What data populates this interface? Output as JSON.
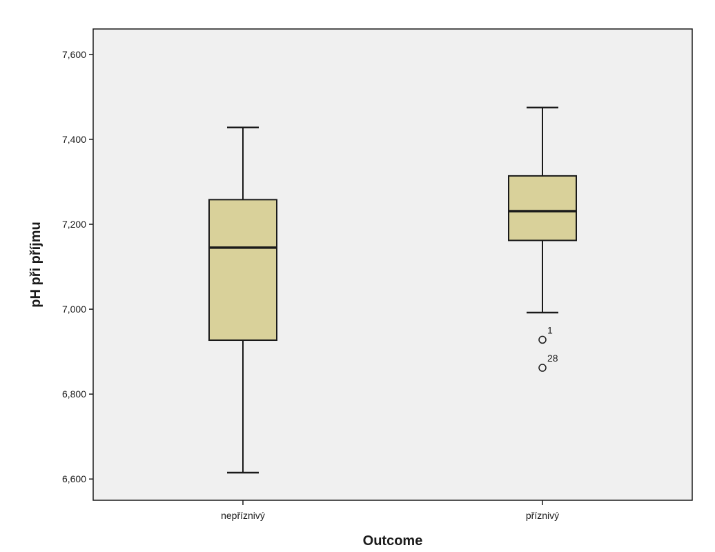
{
  "chart_data": {
    "type": "boxplot",
    "xlabel": "Outcome",
    "ylabel": "pH při příjmu",
    "ylim": [
      6.55,
      7.66
    ],
    "yticks": [
      "6,600",
      "6,800",
      "7,000",
      "7,200",
      "7,400",
      "7,600"
    ],
    "ytick_values": [
      6.6,
      6.8,
      7.0,
      7.2,
      7.4,
      7.6
    ],
    "grid": false,
    "colors": {
      "plot_background": "#f0f0f0",
      "box_fill": "#d9d19a",
      "line": "#1a1a1a"
    },
    "categories": [
      "nepříznivý",
      "příznivý"
    ],
    "boxes": [
      {
        "category": "nepříznivý",
        "whisker_low": 6.615,
        "q1": 6.927,
        "median": 7.145,
        "q3": 7.258,
        "whisker_high": 7.428,
        "outliers": []
      },
      {
        "category": "příznivý",
        "whisker_low": 6.992,
        "q1": 7.162,
        "median": 7.231,
        "q3": 7.314,
        "whisker_high": 7.475,
        "outliers": [
          {
            "label": "1",
            "value": 6.928
          },
          {
            "label": "28",
            "value": 6.862
          }
        ]
      }
    ]
  }
}
